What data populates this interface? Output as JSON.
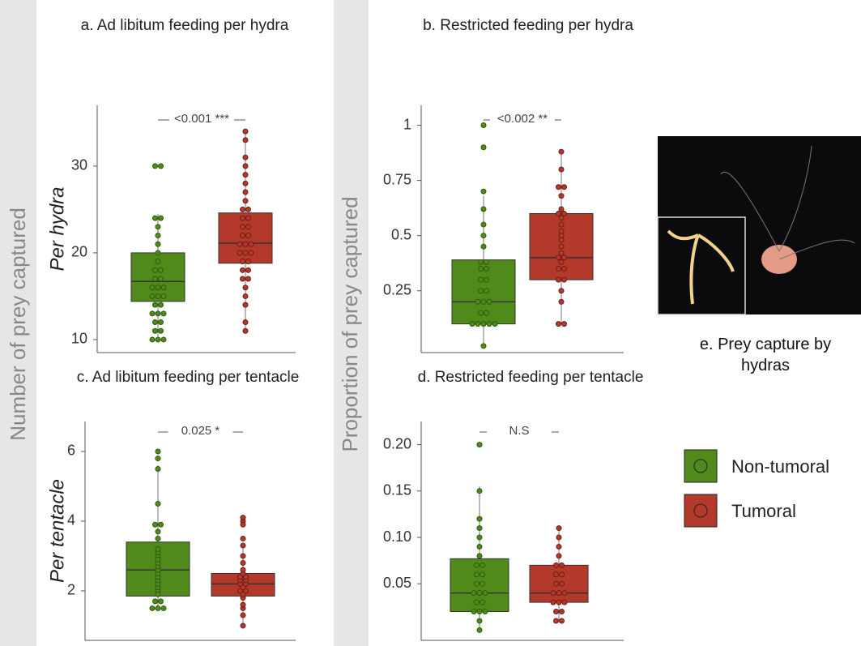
{
  "y_group_labels": [
    "Number of prey captured",
    "Proportion of prey captured"
  ],
  "photo_caption": "e. Prey capture by hydras",
  "chart_data": [
    {
      "type": "box",
      "title": "a. Ad libitum feeding per hydra",
      "ylabel": "Per hydra",
      "annotation": "<0.001 ***",
      "ylim": [
        8.5,
        37
      ],
      "yticks": [
        10,
        20,
        30
      ],
      "series": [
        {
          "name": "Non-tumoral",
          "color": "#4f8a1b",
          "whisker_low": 10,
          "q1": 14.4,
          "median": 16.7,
          "q3": 20,
          "whisker_high": 24.5,
          "points": [
            10,
            10,
            10,
            11,
            11,
            12,
            12,
            13,
            13,
            13,
            14,
            14,
            15,
            15,
            15,
            16,
            16,
            16,
            17,
            17,
            18,
            18,
            19,
            20,
            21,
            22,
            23,
            24,
            24,
            30,
            30
          ]
        },
        {
          "name": "Tumoral",
          "color": "#b3392b",
          "whisker_low": 10.8,
          "q1": 18.8,
          "median": 21.1,
          "q3": 24.6,
          "whisker_high": 34.2,
          "points": [
            11,
            12,
            14,
            15,
            16,
            17,
            17,
            18,
            18,
            19,
            19,
            20,
            20,
            20,
            21,
            21,
            21,
            22,
            22,
            23,
            23,
            24,
            24,
            25,
            25,
            26,
            27,
            28,
            29,
            30,
            31,
            33,
            34
          ]
        }
      ]
    },
    {
      "type": "box",
      "title": "b. Restricted feeding per hydra",
      "annotation": "<0.002 **",
      "ylim": [
        -0.03,
        1.09
      ],
      "yticks": [
        0.25,
        0.5,
        0.75,
        1
      ],
      "series": [
        {
          "color": "#4f8a1b",
          "whisker_low": 0,
          "q1": 0.1,
          "median": 0.2,
          "q3": 0.39,
          "whisker_high": 0.68,
          "points": [
            0,
            0.1,
            0.1,
            0.1,
            0.1,
            0.1,
            0.15,
            0.15,
            0.2,
            0.2,
            0.2,
            0.25,
            0.25,
            0.3,
            0.3,
            0.35,
            0.35,
            0.38,
            0.38,
            0.45,
            0.5,
            0.55,
            0.62,
            0.7,
            0.9,
            1
          ]
        },
        {
          "color": "#b3392b",
          "whisker_low": 0.1,
          "q1": 0.3,
          "median": 0.4,
          "q3": 0.6,
          "whisker_high": 0.88,
          "points": [
            0.1,
            0.1,
            0.2,
            0.25,
            0.3,
            0.3,
            0.35,
            0.35,
            0.38,
            0.4,
            0.4,
            0.42,
            0.45,
            0.48,
            0.5,
            0.52,
            0.55,
            0.58,
            0.6,
            0.6,
            0.62,
            0.68,
            0.72,
            0.72,
            0.8,
            0.88
          ]
        }
      ]
    },
    {
      "type": "box",
      "title": "c. Ad libitum feeding per tentacle",
      "ylabel": "Per tentacle",
      "annotation": "0.025 *",
      "ylim": [
        0.58,
        6.86
      ],
      "yticks": [
        2,
        4,
        6
      ],
      "series": [
        {
          "color": "#4f8a1b",
          "whisker_low": 1.5,
          "q1": 1.85,
          "median": 2.6,
          "q3": 3.4,
          "whisker_high": 5.6,
          "points": [
            1.5,
            1.5,
            1.5,
            1.7,
            1.7,
            1.9,
            2,
            2.1,
            2.2,
            2.3,
            2.4,
            2.5,
            2.6,
            2.7,
            2.8,
            2.9,
            3,
            3.1,
            3.2,
            3.5,
            3.7,
            3.9,
            3.9,
            4.5,
            5.5,
            5.8,
            6
          ]
        },
        {
          "color": "#b3392b",
          "whisker_low": 1,
          "q1": 1.85,
          "median": 2.2,
          "q3": 2.5,
          "whisker_high": 3.3,
          "points": [
            1,
            1.3,
            1.5,
            1.6,
            1.8,
            1.9,
            2,
            2,
            2.1,
            2.2,
            2.2,
            2.3,
            2.3,
            2.4,
            2.4,
            2.5,
            2.6,
            2.8,
            3,
            3.3,
            3.5,
            3.9,
            4,
            4.1
          ]
        }
      ]
    },
    {
      "type": "box",
      "title": "d. Restricted feeding per tentacle",
      "annotation": "N.S",
      "ylim": [
        -0.011,
        0.225
      ],
      "yticks": [
        0.05,
        {
          "value": 0.1,
          "label": "0.10"
        },
        0.15,
        {
          "value": 0.2,
          "label": "0.20"
        }
      ],
      "series": [
        {
          "color": "#4f8a1b",
          "whisker_low": 0,
          "q1": 0.02,
          "median": 0.04,
          "q3": 0.077,
          "whisker_high": 0.155,
          "points": [
            0,
            0.01,
            0.02,
            0.02,
            0.02,
            0.03,
            0.03,
            0.04,
            0.04,
            0.04,
            0.05,
            0.05,
            0.06,
            0.06,
            0.07,
            0.07,
            0.08,
            0.09,
            0.1,
            0.11,
            0.12,
            0.15,
            0.2
          ]
        },
        {
          "color": "#b3392b",
          "whisker_low": 0.01,
          "q1": 0.03,
          "median": 0.04,
          "q3": 0.07,
          "whisker_high": 0.11,
          "points": [
            0.01,
            0.01,
            0.02,
            0.02,
            0.03,
            0.03,
            0.03,
            0.04,
            0.04,
            0.04,
            0.05,
            0.05,
            0.06,
            0.06,
            0.07,
            0.07,
            0.08,
            0.09,
            0.1,
            0.11
          ]
        }
      ]
    }
  ]
}
